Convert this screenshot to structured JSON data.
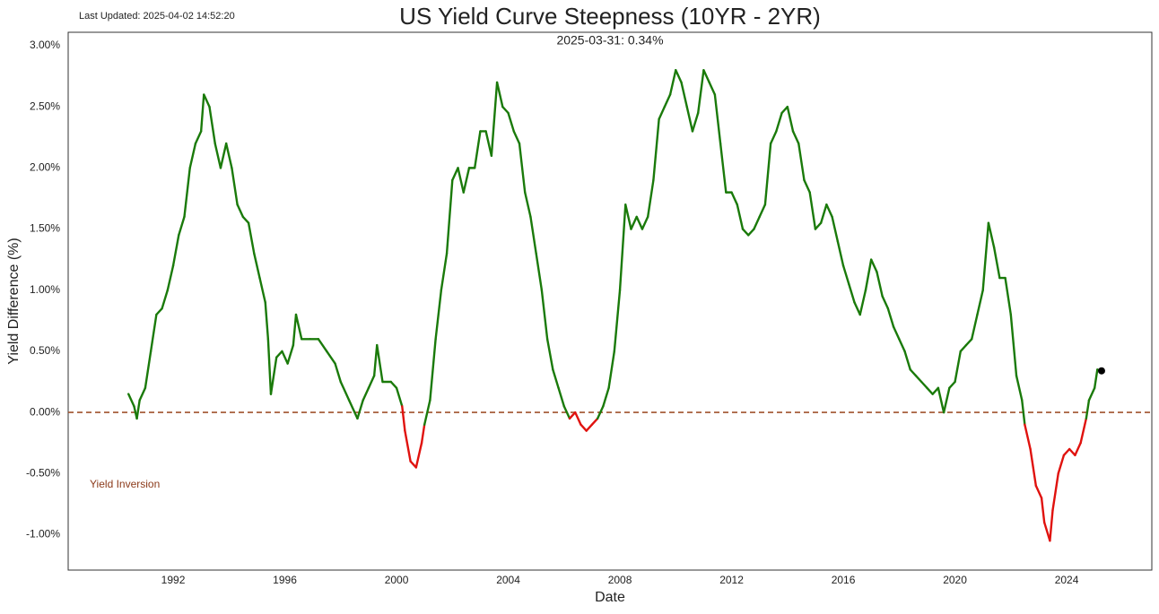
{
  "chart_data": {
    "type": "line",
    "title": "US Yield Curve Steepness (10YR - 2YR)",
    "annotations": {
      "updated": "Last Updated: 2025-04-02 14:52:20",
      "latest": "2025-03-31: 0.34%",
      "inversion": "Yield Inversion"
    },
    "xlabel": "Date",
    "ylabel": "Yield Difference (%)",
    "xlim": [
      1988.24,
      2027.05
    ],
    "xticks": [
      1992,
      1996,
      2000,
      2004,
      2008,
      2012,
      2016,
      2020,
      2024
    ],
    "ylim": [
      -1.29,
      3.11
    ],
    "yticks": [
      {
        "value": -1,
        "label": "-1.00%"
      },
      {
        "value": -0.5,
        "label": "-0.50%"
      },
      {
        "value": 0,
        "label": "0.00%"
      },
      {
        "value": 0.5,
        "label": "0.50%"
      },
      {
        "value": 1,
        "label": "1.00%"
      },
      {
        "value": 1.5,
        "label": "1.50%"
      },
      {
        "value": 2,
        "label": "2.00%"
      },
      {
        "value": 2.5,
        "label": "2.50%"
      },
      {
        "value": 3,
        "label": "3.00%"
      }
    ],
    "reference_line": {
      "value": 0,
      "color": "#a0522d"
    },
    "grid": false,
    "x": [
      1990.4,
      1990.6,
      1990.7,
      1990.8,
      1991.0,
      1991.2,
      1991.4,
      1991.6,
      1991.8,
      1992.0,
      1992.2,
      1992.4,
      1992.6,
      1992.8,
      1993.0,
      1993.1,
      1993.3,
      1993.5,
      1993.7,
      1993.9,
      1994.1,
      1994.3,
      1994.5,
      1994.7,
      1994.9,
      1995.1,
      1995.3,
      1995.4,
      1995.5,
      1995.7,
      1995.9,
      1996.1,
      1996.3,
      1996.4,
      1996.6,
      1996.9,
      1997.2,
      1997.5,
      1997.8,
      1998.0,
      1998.3,
      1998.6,
      1998.8,
      1999.0,
      1999.2,
      1999.3,
      1999.5,
      1999.8,
      2000.0,
      2000.2,
      2000.3,
      2000.5,
      2000.7,
      2000.9,
      2001.0,
      2001.2,
      2001.4,
      2001.6,
      2001.8,
      2002.0,
      2002.2,
      2002.4,
      2002.6,
      2002.8,
      2003.0,
      2003.2,
      2003.4,
      2003.6,
      2003.8,
      2004.0,
      2004.2,
      2004.4,
      2004.6,
      2004.8,
      2005.0,
      2005.2,
      2005.4,
      2005.6,
      2005.8,
      2006.0,
      2006.2,
      2006.4,
      2006.6,
      2006.8,
      2007.0,
      2007.2,
      2007.4,
      2007.6,
      2007.8,
      2008.0,
      2008.2,
      2008.4,
      2008.6,
      2008.8,
      2009.0,
      2009.2,
      2009.4,
      2009.6,
      2009.8,
      2010.0,
      2010.2,
      2010.4,
      2010.6,
      2010.8,
      2011.0,
      2011.2,
      2011.4,
      2011.6,
      2011.8,
      2012.0,
      2012.2,
      2012.4,
      2012.6,
      2012.8,
      2013.0,
      2013.2,
      2013.4,
      2013.6,
      2013.8,
      2014.0,
      2014.2,
      2014.4,
      2014.6,
      2014.8,
      2015.0,
      2015.2,
      2015.4,
      2015.6,
      2015.8,
      2016.0,
      2016.2,
      2016.4,
      2016.6,
      2016.8,
      2017.0,
      2017.2,
      2017.4,
      2017.6,
      2017.8,
      2018.0,
      2018.2,
      2018.4,
      2018.6,
      2018.8,
      2019.0,
      2019.2,
      2019.4,
      2019.6,
      2019.8,
      2020.0,
      2020.2,
      2020.4,
      2020.6,
      2020.8,
      2021.0,
      2021.2,
      2021.4,
      2021.6,
      2021.8,
      2022.0,
      2022.2,
      2022.4,
      2022.5,
      2022.7,
      2022.9,
      2023.1,
      2023.2,
      2023.4,
      2023.5,
      2023.7,
      2023.9,
      2024.1,
      2024.3,
      2024.5,
      2024.7,
      2024.8,
      2025.0,
      2025.1,
      2025.25
    ],
    "series": [
      {
        "color": "#1a7a0a",
        "negative_color": "#e0120e",
        "values": [
          0.15,
          0.05,
          -0.05,
          0.1,
          0.2,
          0.5,
          0.8,
          0.85,
          1.0,
          1.2,
          1.45,
          1.6,
          2.0,
          2.2,
          2.3,
          2.6,
          2.5,
          2.2,
          2.0,
          2.2,
          2.0,
          1.7,
          1.6,
          1.55,
          1.3,
          1.1,
          0.9,
          0.6,
          0.15,
          0.45,
          0.5,
          0.4,
          0.55,
          0.8,
          0.6,
          0.6,
          0.6,
          0.5,
          0.4,
          0.25,
          0.1,
          -0.05,
          0.1,
          0.2,
          0.3,
          0.55,
          0.25,
          0.25,
          0.2,
          0.05,
          -0.15,
          -0.4,
          -0.45,
          -0.25,
          -0.1,
          0.1,
          0.6,
          1.0,
          1.3,
          1.9,
          2.0,
          1.8,
          2.0,
          2.0,
          2.3,
          2.3,
          2.1,
          2.7,
          2.5,
          2.45,
          2.3,
          2.2,
          1.8,
          1.6,
          1.3,
          1.0,
          0.6,
          0.35,
          0.2,
          0.05,
          -0.05,
          0.0,
          -0.1,
          -0.15,
          -0.1,
          -0.05,
          0.05,
          0.2,
          0.5,
          1.0,
          1.7,
          1.5,
          1.6,
          1.5,
          1.6,
          1.9,
          2.4,
          2.5,
          2.6,
          2.8,
          2.7,
          2.5,
          2.3,
          2.45,
          2.8,
          2.7,
          2.6,
          2.2,
          1.8,
          1.8,
          1.7,
          1.5,
          1.45,
          1.5,
          1.6,
          1.7,
          2.2,
          2.3,
          2.45,
          2.5,
          2.3,
          2.2,
          1.9,
          1.8,
          1.5,
          1.55,
          1.7,
          1.6,
          1.4,
          1.2,
          1.05,
          0.9,
          0.8,
          1.0,
          1.25,
          1.15,
          0.95,
          0.85,
          0.7,
          0.6,
          0.5,
          0.35,
          0.3,
          0.25,
          0.2,
          0.15,
          0.2,
          0.0,
          0.2,
          0.25,
          0.5,
          0.55,
          0.6,
          0.8,
          1.0,
          1.55,
          1.35,
          1.1,
          1.1,
          0.8,
          0.3,
          0.1,
          -0.1,
          -0.3,
          -0.6,
          -0.7,
          -0.9,
          -1.05,
          -0.8,
          -0.5,
          -0.35,
          -0.3,
          -0.35,
          -0.25,
          -0.05,
          0.1,
          0.2,
          0.35,
          0.34
        ]
      }
    ]
  }
}
